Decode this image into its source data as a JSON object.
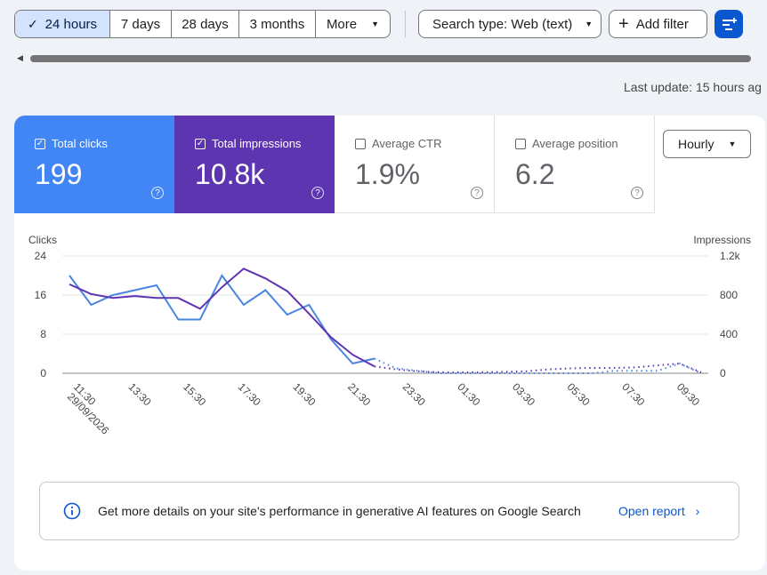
{
  "date_range": {
    "options": [
      "24 hours",
      "7 days",
      "28 days",
      "3 months"
    ],
    "selected": "24 hours",
    "more_label": "More"
  },
  "filters": {
    "search_type_label": "Search type: Web (text)",
    "add_filter_label": "Add filter"
  },
  "last_update": "Last update: 15 hours ag",
  "metrics": [
    {
      "label": "Total clicks",
      "value": "199",
      "checked": true,
      "color": "#4285f4"
    },
    {
      "label": "Total impressions",
      "value": "10.8k",
      "checked": true,
      "color": "#5e35b1"
    },
    {
      "label": "Average CTR",
      "value": "1.9%",
      "checked": false
    },
    {
      "label": "Average position",
      "value": "6.2",
      "checked": false
    }
  ],
  "granularity": "Hourly",
  "chart_data": {
    "type": "line",
    "left_axis_label": "Clicks",
    "right_axis_label": "Impressions",
    "left_ticks": [
      "24",
      "16",
      "8",
      "0"
    ],
    "right_ticks": [
      "1.2k",
      "800",
      "400",
      "0"
    ],
    "left_ylim": [
      0,
      24
    ],
    "right_ylim": [
      0,
      1200
    ],
    "x_tick_labels": [
      "11:30\n29/09/2026",
      "13:30",
      "15:30",
      "17:30",
      "19:30",
      "21:30",
      "23:30",
      "01:30",
      "03:30",
      "05:30",
      "07:30",
      "09:30"
    ],
    "series": [
      {
        "name": "Clicks",
        "axis": "left",
        "color": "#4a86e0",
        "values": [
          20,
          14,
          16,
          17,
          18,
          11,
          11,
          20,
          14,
          17,
          12,
          14,
          7,
          2,
          3,
          1,
          0.5,
          0,
          0,
          0,
          0,
          0,
          0,
          0,
          0,
          0.5,
          0.5,
          0.5,
          2,
          0
        ],
        "solid_until_index": 14
      },
      {
        "name": "Impressions",
        "axis": "right",
        "color": "#5e35b1",
        "values": [
          910,
          810,
          770,
          790,
          770,
          770,
          660,
          880,
          1070,
          970,
          840,
          610,
          370,
          190,
          70,
          40,
          20,
          10,
          10,
          10,
          15,
          20,
          40,
          50,
          55,
          55,
          60,
          80,
          100,
          10
        ],
        "solid_until_index": 14
      }
    ]
  },
  "banner": {
    "text": "Get more details on your site's performance in generative AI features on Google Search",
    "link": "Open report"
  }
}
